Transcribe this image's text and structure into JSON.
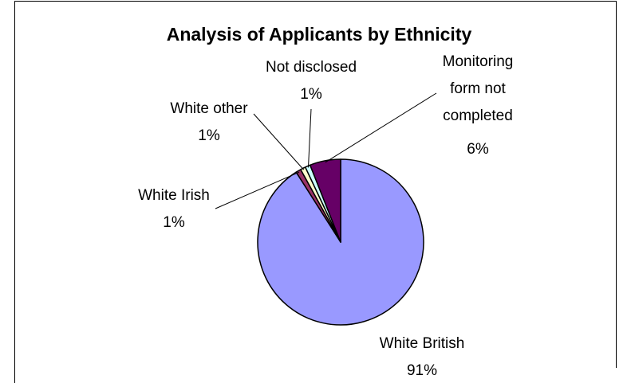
{
  "chart_data": {
    "type": "pie",
    "title": "Analysis of Applicants by Ethnicity",
    "slices": [
      {
        "label": "White British",
        "value": 91,
        "percent_label": "91%",
        "color": "#9999ff"
      },
      {
        "label": "White Irish",
        "value": 1,
        "percent_label": "1%",
        "color": "#993366"
      },
      {
        "label": "White other",
        "value": 1,
        "percent_label": "1%",
        "color": "#ffffcc"
      },
      {
        "label": "Not disclosed",
        "value": 1,
        "percent_label": "1%",
        "color": "#ccffff"
      },
      {
        "label": "Monitoring form not completed",
        "value": 6,
        "percent_label": "6%",
        "color": "#660066"
      }
    ],
    "legend": "none"
  }
}
